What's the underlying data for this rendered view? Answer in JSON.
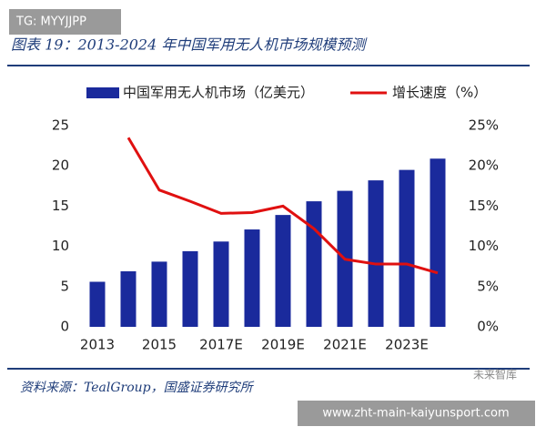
{
  "chart_data": {
    "type": "bar-line",
    "title": "图表 19：2013-2024 年中国军用无人机市场规模预测",
    "categories": [
      "2013",
      null,
      "2015",
      null,
      "2017E",
      null,
      "2019E",
      null,
      "2021E",
      null,
      "2023E",
      null
    ],
    "series": [
      {
        "name": "中国军用无人机市场（亿美元）",
        "type": "bar",
        "color": "#1a2a9c",
        "values": [
          5.6,
          6.9,
          8.1,
          9.4,
          10.6,
          12.1,
          13.9,
          15.6,
          16.9,
          18.2,
          19.5,
          20.9
        ]
      },
      {
        "name": "增长速度（%）",
        "type": "line",
        "axis": "y2",
        "color": "#e01010",
        "values": [
          null,
          23.5,
          17,
          15.6,
          14.1,
          14.2,
          15,
          12.2,
          8.4,
          7.8,
          7.8,
          6.7
        ]
      }
    ],
    "ylim": [
      0,
      25
    ],
    "yticks": [
      0,
      5,
      10,
      15,
      20,
      25
    ],
    "y2lim": [
      0,
      25
    ],
    "y2ticks": [
      {
        "value": 0,
        "label": "0%"
      },
      {
        "value": 5,
        "label": "5%"
      },
      {
        "value": 10,
        "label": "10%"
      },
      {
        "value": 15,
        "label": "15%"
      },
      {
        "value": 20,
        "label": "20%"
      },
      {
        "value": 25,
        "label": "25%"
      }
    ],
    "legend": "top"
  },
  "source": "资料来源：TealGroup，国盛证券研究所",
  "watermark_brand": "未来智库",
  "watermark_tag": "TG: MYYJJPP",
  "watermark_url": "www.zht-main-kaiyunsport.com"
}
